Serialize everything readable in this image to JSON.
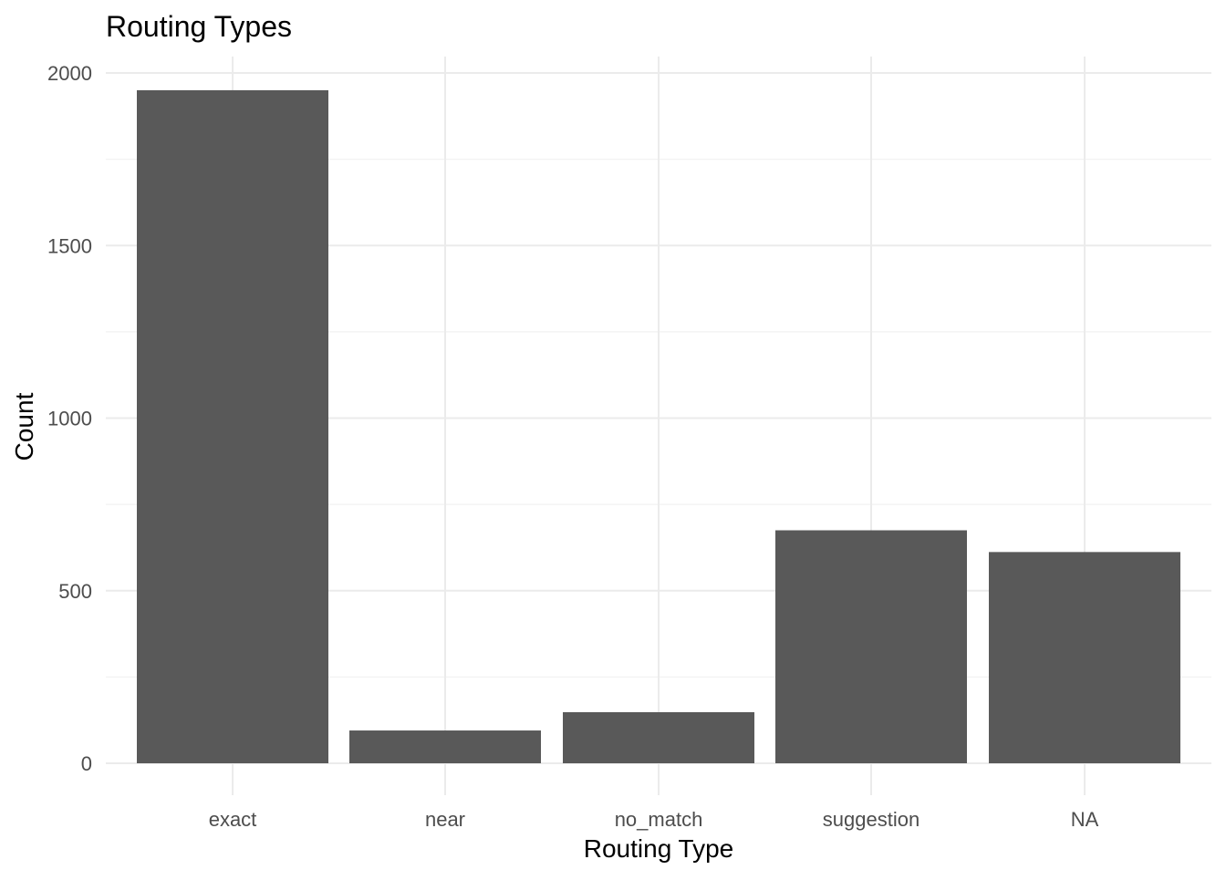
{
  "chart_data": {
    "type": "bar",
    "title": "Routing Types",
    "xlabel": "Routing Type",
    "ylabel": "Count",
    "categories": [
      "exact",
      "near",
      "no_match",
      "suggestion",
      "NA"
    ],
    "values": [
      1950,
      95,
      148,
      675,
      612
    ],
    "ylim": [
      0,
      2050
    ],
    "yticks": [
      0,
      500,
      1000,
      1500,
      2000
    ],
    "y_minor_ticks": [
      250,
      750,
      1250,
      1750
    ],
    "grid": true,
    "legend": "none",
    "colors": {
      "bar": "#595959",
      "grid_major": "#ebebeb",
      "grid_minor": "#f2f2f2",
      "tick_text": "#4d4d4d",
      "text": "#000000"
    }
  }
}
